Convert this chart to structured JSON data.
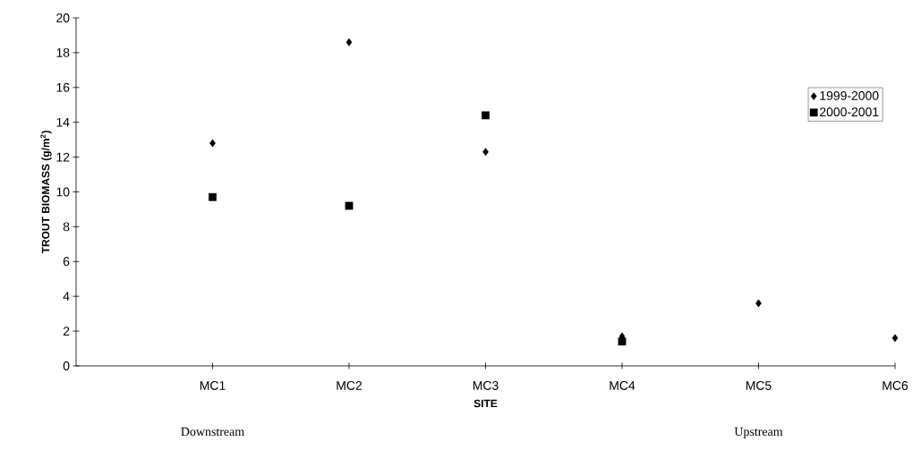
{
  "chart_data": {
    "type": "scatter",
    "xlabel": "SITE",
    "ylabel": "TROUT BIOMASS (g/m$^{2}$)",
    "categories": [
      null,
      "MC1",
      "MC2",
      "MC3",
      "MC4",
      "MC5",
      "MC6"
    ],
    "series": [
      {
        "name": "1999-2000",
        "color": "#000000",
        "marker": "diamond",
        "values": [
          null,
          12.8,
          18.6,
          12.3,
          1.7,
          3.6,
          1.6
        ]
      },
      {
        "name": "2000-2001",
        "color": "#000000",
        "marker": "square",
        "values": [
          null,
          9.7,
          9.2,
          14.4,
          1.4,
          null,
          null
        ]
      }
    ],
    "ylim": [
      0,
      20
    ],
    "yticks": [
      0,
      2,
      4,
      6,
      8,
      10,
      12,
      14,
      16,
      18,
      20
    ],
    "grid": false,
    "legend": "top right",
    "annotations": [
      "Downstream",
      "Upstream"
    ]
  }
}
